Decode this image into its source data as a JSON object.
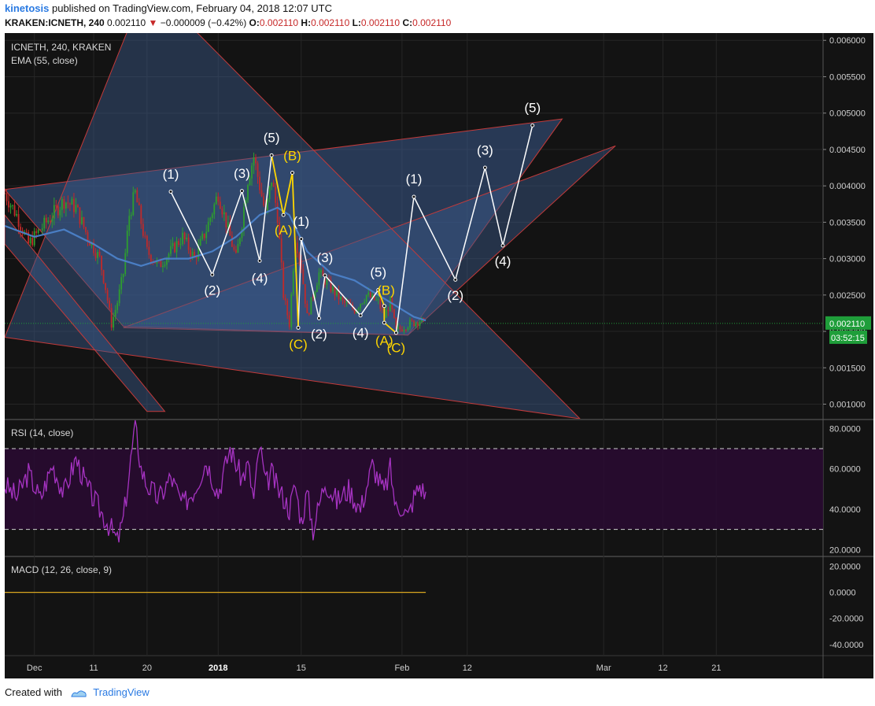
{
  "header": {
    "author": "kinetosis",
    "published_text": "published on TradingView.com, February 04, 2018 12:07 UTC",
    "symbol_line": "KRAKEN:ICNETH, 240",
    "last_price": "0.002110",
    "change_arrow": "▼",
    "change": "−0.000009 (−0.42%)",
    "o_label": "O:",
    "o": "0.002110",
    "h_label": "H:",
    "h": "0.002110",
    "l_label": "L:",
    "l": "0.002110",
    "c_label": "C:",
    "c": "0.002110"
  },
  "footer": {
    "created_with": "Created with",
    "brand": "TradingView"
  },
  "colors": {
    "background": "#131313",
    "bull": "#2e9e2e",
    "bear": "#c02a2a",
    "ema": "#4a7ec4",
    "rsi": "#a633c2",
    "wave_white": "#ffffff",
    "wave_yellow": "#ffd600",
    "channel_fill": "#3b5a8c",
    "channel_line": "#c43a3a",
    "price_tag": "#1f9e3a"
  },
  "chart_data": [
    {
      "type": "candlestick",
      "title": "ICNETH, 240, KRAKEN",
      "indicator_label": "EMA (55, close)",
      "ylim": [
        0.0008,
        0.0061
      ],
      "y_ticks": [
        "0.006000",
        "0.005500",
        "0.005000",
        "0.004500",
        "0.004000",
        "0.003500",
        "0.003000",
        "0.002500",
        "0.002000",
        "0.001500",
        "0.001000"
      ],
      "y_tick_values": [
        0.006,
        0.0055,
        0.005,
        0.0045,
        0.004,
        0.0035,
        0.003,
        0.0025,
        0.002,
        0.0015,
        0.001
      ],
      "x_ticks": [
        "Dec",
        "11",
        "20",
        "2018",
        "15",
        "Feb",
        "12",
        "Mar",
        "12",
        "21"
      ],
      "x_tick_days": [
        -5,
        5,
        14,
        26,
        40,
        57,
        68,
        91,
        101,
        110
      ],
      "x_domain_days": [
        -10,
        128
      ],
      "last_price_label": "0.002110",
      "countdown_label": "03:52:15",
      "last_price": 0.00211,
      "ema_path": [
        [
          -10,
          0.00345
        ],
        [
          -5,
          0.0033
        ],
        [
          0,
          0.0034
        ],
        [
          5,
          0.0032
        ],
        [
          9,
          0.003
        ],
        [
          13,
          0.0029
        ],
        [
          17,
          0.003
        ],
        [
          21,
          0.003
        ],
        [
          25,
          0.0031
        ],
        [
          29,
          0.0033
        ],
        [
          33,
          0.0036
        ],
        [
          36,
          0.0037
        ],
        [
          38,
          0.0036
        ],
        [
          41,
          0.0031
        ],
        [
          45,
          0.0028
        ],
        [
          49,
          0.0027
        ],
        [
          53,
          0.0025
        ],
        [
          56,
          0.00235
        ],
        [
          59,
          0.0022
        ],
        [
          61,
          0.00215
        ]
      ],
      "close_path": [
        [
          -10,
          0.0039
        ],
        [
          -8,
          0.0036
        ],
        [
          -6,
          0.0032
        ],
        [
          -4,
          0.0034
        ],
        [
          -2,
          0.0036
        ],
        [
          0,
          0.0038
        ],
        [
          2,
          0.0037
        ],
        [
          4,
          0.0033
        ],
        [
          6,
          0.003
        ],
        [
          7,
          0.0026
        ],
        [
          8,
          0.0021
        ],
        [
          9,
          0.0024
        ],
        [
          10,
          0.0028
        ],
        [
          11,
          0.0036
        ],
        [
          12,
          0.0039
        ],
        [
          13,
          0.0035
        ],
        [
          14,
          0.0031
        ],
        [
          16,
          0.0029
        ],
        [
          18,
          0.0031
        ],
        [
          20,
          0.0033
        ],
        [
          22,
          0.003
        ],
        [
          24,
          0.0034
        ],
        [
          26,
          0.0039
        ],
        [
          28,
          0.0033
        ],
        [
          29,
          0.003
        ],
        [
          30,
          0.0035
        ],
        [
          31,
          0.0041
        ],
        [
          32,
          0.0044
        ],
        [
          33,
          0.004
        ],
        [
          34,
          0.0036
        ],
        [
          35,
          0.0041
        ],
        [
          36,
          0.0036
        ],
        [
          37,
          0.0025
        ],
        [
          38,
          0.0021
        ],
        [
          39,
          0.0033
        ],
        [
          40,
          0.0029
        ],
        [
          41,
          0.0022
        ],
        [
          43,
          0.0028
        ],
        [
          45,
          0.0026
        ],
        [
          47,
          0.0024
        ],
        [
          49,
          0.0023
        ],
        [
          51,
          0.0025
        ],
        [
          53,
          0.0024
        ],
        [
          54,
          0.0022
        ],
        [
          55,
          0.0024
        ],
        [
          56,
          0.002
        ],
        [
          58,
          0.0021
        ],
        [
          60,
          0.00215
        ],
        [
          61,
          0.00211
        ]
      ],
      "waves": [
        {
          "label": "(1)",
          "color": "white",
          "x": 18,
          "y": 0.00392,
          "lx": 18,
          "ly": 0.00415
        },
        {
          "label": "(2)",
          "color": "white",
          "x": 25,
          "y": 0.00278,
          "lx": 25,
          "ly": 0.00255
        },
        {
          "label": "(3)",
          "color": "white",
          "x": 30,
          "y": 0.00393,
          "lx": 30,
          "ly": 0.00416
        },
        {
          "label": "(4)",
          "color": "white",
          "x": 33,
          "y": 0.00297,
          "lx": 33,
          "ly": 0.00272
        },
        {
          "label": "(5)",
          "color": "white",
          "x": 35,
          "y": 0.00442,
          "lx": 35,
          "ly": 0.00465
        },
        {
          "label": "(A)",
          "color": "yellow",
          "x": 37,
          "y": 0.0036,
          "lx": 37,
          "ly": 0.00338
        },
        {
          "label": "(B)",
          "color": "yellow",
          "x": 38.5,
          "y": 0.00418,
          "lx": 38.5,
          "ly": 0.0044
        },
        {
          "label": "(C)",
          "color": "yellow",
          "x": 39.5,
          "y": 0.00205,
          "lx": 39.5,
          "ly": 0.00181
        },
        {
          "label": "(1)",
          "color": "white",
          "x": 40,
          "y": 0.00327,
          "lx": 40,
          "ly": 0.0035
        },
        {
          "label": "(2)",
          "color": "white",
          "x": 43,
          "y": 0.00218,
          "lx": 43,
          "ly": 0.00195
        },
        {
          "label": "(3)",
          "color": "white",
          "x": 44,
          "y": 0.00277,
          "lx": 44,
          "ly": 0.003
        },
        {
          "label": "(4)",
          "color": "white",
          "x": 50,
          "y": 0.00222,
          "lx": 50,
          "ly": 0.00197
        },
        {
          "label": "(5)",
          "color": "white",
          "x": 53,
          "y": 0.00257,
          "lx": 53,
          "ly": 0.0028
        },
        {
          "label": "(B)",
          "color": "yellow",
          "x": 54,
          "y": 0.00235,
          "lx": 54.3,
          "ly": 0.00255
        },
        {
          "label": "(A)",
          "color": "yellow",
          "x": 54,
          "y": 0.00212,
          "lx": 54,
          "ly": 0.00186
        },
        {
          "label": "(C)",
          "color": "yellow",
          "x": 56,
          "y": 0.00198,
          "lx": 56,
          "ly": 0.00176
        },
        {
          "label": "(1)",
          "color": "white",
          "x": 59,
          "y": 0.00385,
          "lx": 59,
          "ly": 0.00408
        },
        {
          "label": "(2)",
          "color": "white",
          "x": 66,
          "y": 0.00271,
          "lx": 66,
          "ly": 0.00248
        },
        {
          "label": "(3)",
          "color": "white",
          "x": 71,
          "y": 0.00425,
          "lx": 71,
          "ly": 0.00448
        },
        {
          "label": "(4)",
          "color": "white",
          "x": 74,
          "y": 0.00318,
          "lx": 74,
          "ly": 0.00295
        },
        {
          "label": "(5)",
          "color": "white",
          "x": 79,
          "y": 0.00483,
          "lx": 79,
          "ly": 0.00506
        }
      ]
    },
    {
      "type": "line",
      "title": "RSI (14, close)",
      "ylim": [
        17,
        84
      ],
      "y_ticks": [
        "80.0000",
        "60.0000",
        "40.0000",
        "20.0000"
      ],
      "y_tick_values": [
        80,
        60,
        40,
        20
      ],
      "band": [
        30,
        70
      ],
      "x": [
        -10,
        -8,
        -6,
        -4,
        -2,
        0,
        2,
        4,
        6,
        8,
        9,
        10,
        11,
        12,
        13,
        14,
        16,
        18,
        20,
        22,
        24,
        26,
        28,
        30,
        31,
        32,
        33,
        34,
        35,
        36,
        37,
        38,
        39,
        40,
        41,
        42,
        44,
        46,
        48,
        50,
        52,
        53,
        54,
        55,
        56,
        57,
        58,
        59,
        60,
        61
      ],
      "values": [
        52,
        46,
        58,
        45,
        62,
        48,
        65,
        50,
        40,
        30,
        24,
        35,
        58,
        82,
        60,
        52,
        45,
        56,
        42,
        50,
        64,
        48,
        70,
        55,
        62,
        45,
        72,
        52,
        58,
        50,
        46,
        40,
        52,
        34,
        48,
        30,
        54,
        44,
        50,
        40,
        62,
        55,
        48,
        60,
        40,
        42,
        36,
        46,
        52,
        47
      ]
    },
    {
      "type": "line",
      "title": "MACD (12, 26, close, 9)",
      "ylim": [
        -48,
        27
      ],
      "y_ticks": [
        "20.0000",
        "0.0000",
        "-20.0000",
        "-40.0000"
      ],
      "y_tick_values": [
        20,
        0,
        -20,
        -40
      ],
      "x": [
        -10,
        61
      ],
      "values": [
        0,
        0
      ]
    }
  ]
}
